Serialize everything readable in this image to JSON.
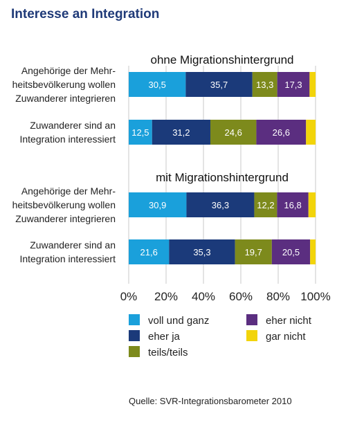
{
  "chart_data": {
    "type": "bar",
    "orientation": "horizontal",
    "stacked": true,
    "title": "Interesse an Integration",
    "source": "Quelle: SVR-Integrationsbarometer 2010",
    "xlim": [
      0,
      100
    ],
    "x_ticks": [
      "0%",
      "20%",
      "40%",
      "60%",
      "80%",
      "100%"
    ],
    "grid": true,
    "legend_position": "bottom",
    "segments": [
      {
        "name": "voll und ganz",
        "color": "#1aa0db"
      },
      {
        "name": "eher ja",
        "color": "#1b3a7a"
      },
      {
        "name": "teils/teils",
        "color": "#7d8a1c"
      },
      {
        "name": "eher nicht",
        "color": "#5b2e80"
      },
      {
        "name": "gar nicht",
        "color": "#f2d40a"
      }
    ],
    "groups": [
      {
        "name": "ohne Migrationshintergrund",
        "rows": [
          {
            "label": [
              "Angehörige der Mehr-",
              "heitsbevölkerung wollen",
              "Zuwanderer integrieren"
            ],
            "values": [
              30.5,
              35.7,
              13.3,
              17.3,
              3.2
            ],
            "labels": [
              "30,5",
              "35,7",
              "13,3",
              "17,3",
              ""
            ]
          },
          {
            "label": [
              "Zuwanderer sind an",
              "Integration interessiert"
            ],
            "values": [
              12.5,
              31.2,
              24.6,
              26.6,
              5.1
            ],
            "labels": [
              "12,5",
              "31,2",
              "24,6",
              "26,6",
              ""
            ]
          }
        ]
      },
      {
        "name": "mit Migrationshintergrund",
        "rows": [
          {
            "label": [
              "Angehörige der Mehr-",
              "heitsbevölkerung wollen",
              "Zuwanderer integrieren"
            ],
            "values": [
              30.9,
              36.3,
              12.2,
              16.8,
              3.8
            ],
            "labels": [
              "30,9",
              "36,3",
              "12,2",
              "16,8",
              ""
            ]
          },
          {
            "label": [
              "Zuwanderer sind an",
              "Integration interessiert"
            ],
            "values": [
              21.6,
              35.3,
              19.7,
              20.5,
              2.9
            ],
            "labels": [
              "21,6",
              "35,3",
              "19,7",
              "20,5",
              ""
            ]
          }
        ]
      }
    ]
  }
}
